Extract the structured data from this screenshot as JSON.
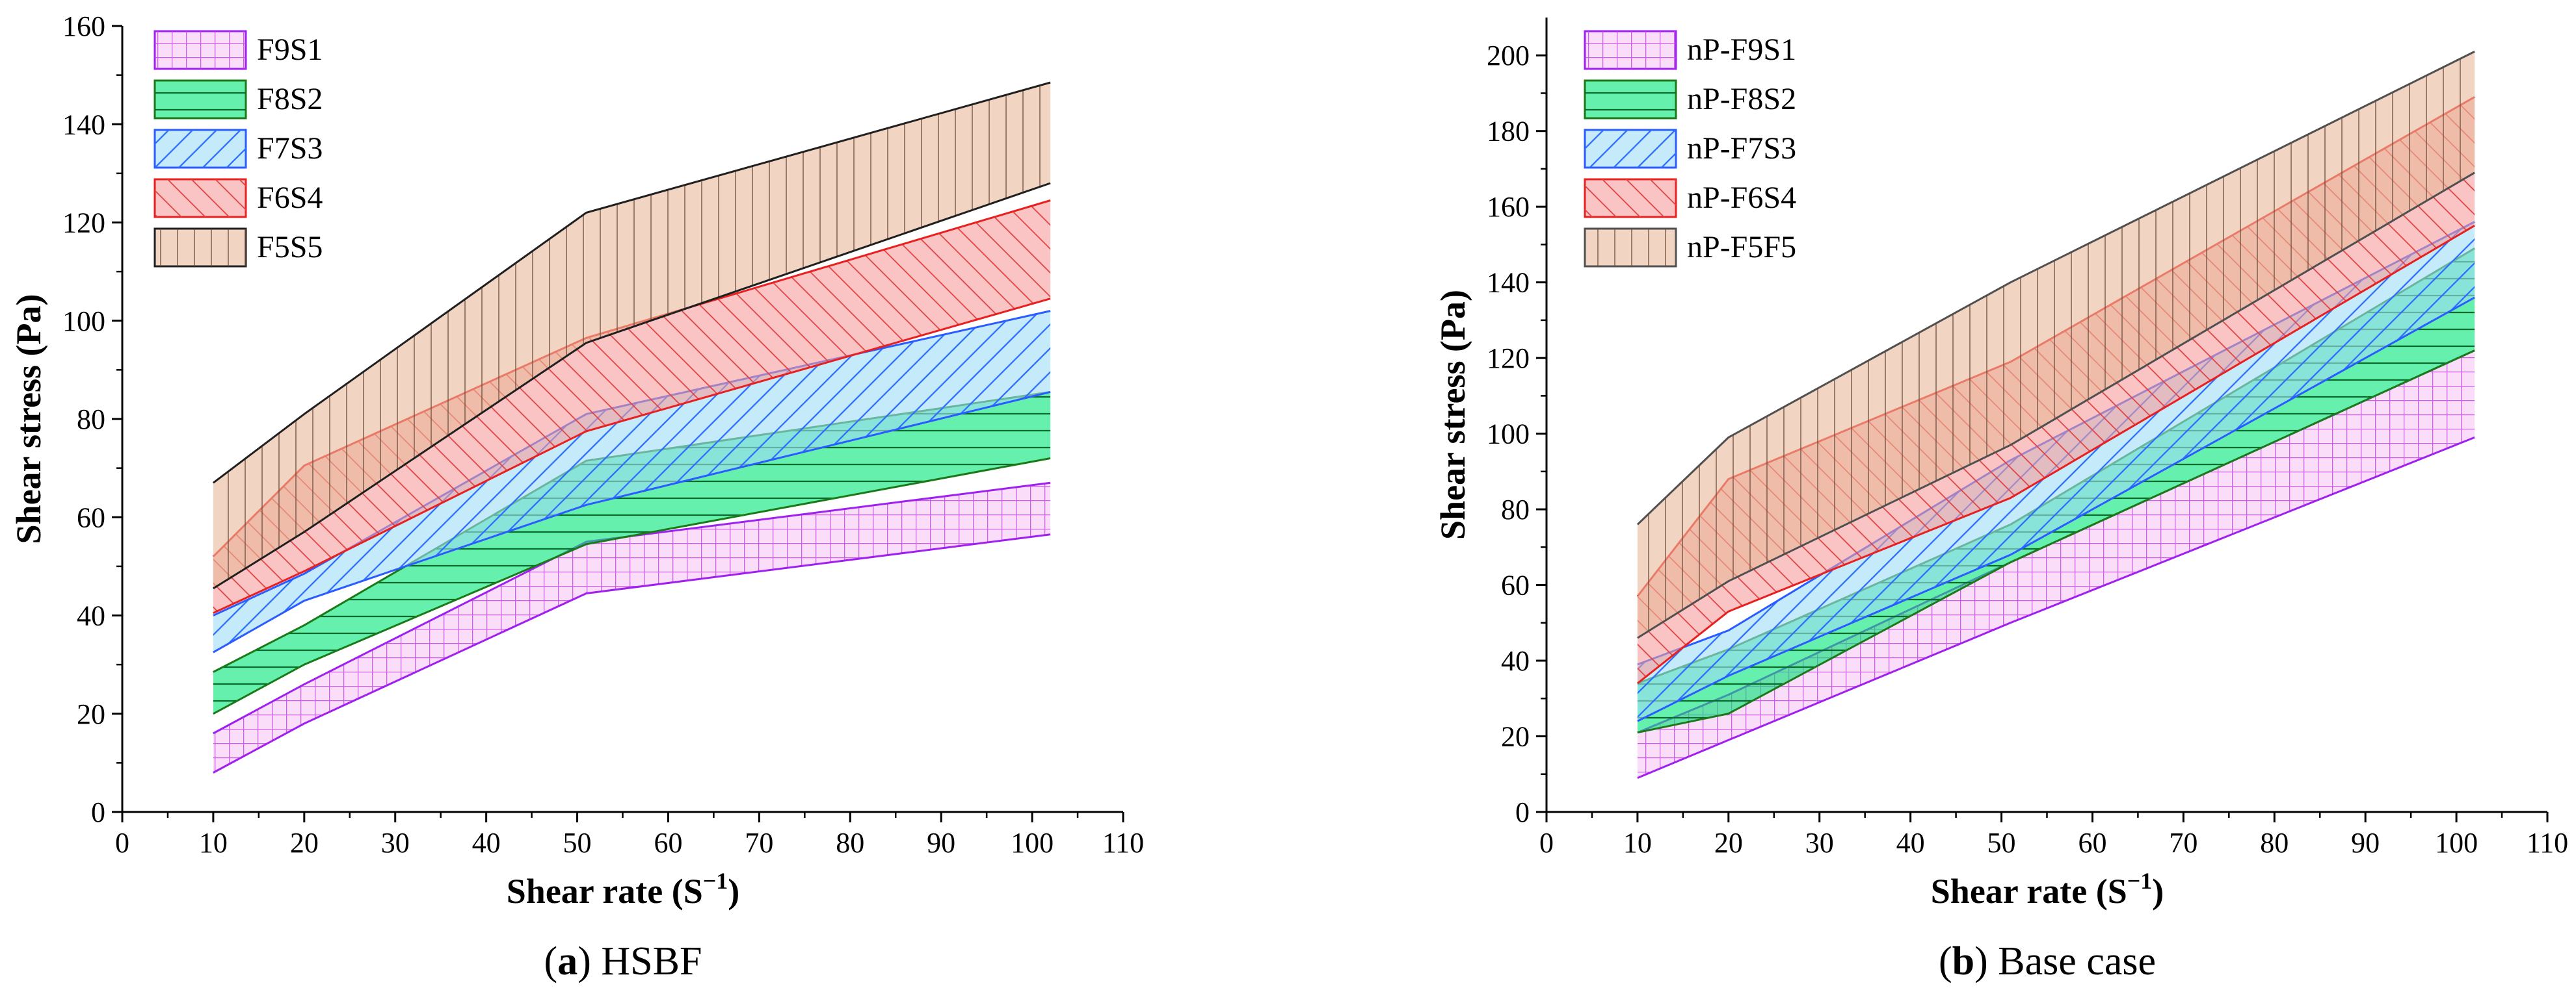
{
  "chart_data": [
    {
      "type": "area",
      "panel_letter": "a",
      "caption": "HSBF",
      "xlabel": "Shear rate (S",
      "xlabel_sup": "−1",
      "xlabel_close": ")",
      "ylabel": "Shear stress (Pa)",
      "xlim": [
        0,
        110
      ],
      "ylim": [
        0,
        160
      ],
      "xticks": [
        0,
        10,
        20,
        30,
        40,
        50,
        60,
        70,
        80,
        90,
        100,
        110
      ],
      "yticks": [
        0,
        20,
        40,
        60,
        80,
        100,
        120,
        140,
        160
      ],
      "legend_position": "top-left",
      "series": [
        {
          "name": "F9S1",
          "x": [
            10,
            20,
            51,
            102
          ],
          "lower": [
            8,
            18,
            44.5,
            56.5
          ],
          "upper": [
            16,
            26,
            55,
            67
          ],
          "fill": "#f7c6f3",
          "stroke": "#a020f0",
          "pattern": "grid"
        },
        {
          "name": "F8S2",
          "x": [
            10,
            20,
            51,
            102
          ],
          "lower": [
            20,
            30,
            54.5,
            72
          ],
          "upper": [
            28.5,
            38,
            71.5,
            85.5
          ],
          "fill": "#00e676",
          "stroke": "#1a7a1a",
          "pattern": "horizontal"
        },
        {
          "name": "F7S3",
          "x": [
            10,
            20,
            51,
            102
          ],
          "lower": [
            32.5,
            43,
            62.5,
            85.5
          ],
          "upper": [
            40,
            48.5,
            81,
            102
          ],
          "fill": "#9fdcf7",
          "stroke": "#2a5cff",
          "pattern": "backslash"
        },
        {
          "name": "F6S4",
          "x": [
            10,
            20,
            51,
            102
          ],
          "lower": [
            40.5,
            49,
            77.5,
            104.5
          ],
          "upper": [
            52,
            70.5,
            96.5,
            124.5
          ],
          "fill": "#f79c9c",
          "stroke": "#e82020",
          "pattern": "slash"
        },
        {
          "name": "F5S5",
          "x": [
            10,
            20,
            51,
            102
          ],
          "lower": [
            45.5,
            57,
            95.5,
            128
          ],
          "upper": [
            67,
            81,
            122,
            148.5
          ],
          "fill": "#e9b89a",
          "stroke": "#202020",
          "pattern": "vertical"
        }
      ]
    },
    {
      "type": "area",
      "panel_letter": "b",
      "caption": "Base case",
      "xlabel": "Shear rate (S",
      "xlabel_sup": "−1",
      "xlabel_close": ")",
      "ylabel": "Shear stress (Pa)",
      "xlim": [
        0,
        110
      ],
      "ylim": [
        0,
        210
      ],
      "xticks": [
        0,
        10,
        20,
        30,
        40,
        50,
        60,
        70,
        80,
        90,
        100,
        110
      ],
      "yticks": [
        0,
        20,
        40,
        60,
        80,
        100,
        120,
        140,
        160,
        180,
        200
      ],
      "legend_position": "top-left",
      "series": [
        {
          "name": "nP-F9S1",
          "x": [
            10,
            20,
            51,
            102
          ],
          "lower": [
            9,
            19,
            50,
            99
          ],
          "upper": [
            21,
            31,
            66,
            122
          ],
          "fill": "#f7c6f3",
          "stroke": "#a020f0",
          "pattern": "grid"
        },
        {
          "name": "nP-F8S2",
          "x": [
            10,
            20,
            51,
            102
          ],
          "lower": [
            21,
            26,
            66,
            122
          ],
          "upper": [
            34,
            43,
            76,
            149
          ],
          "fill": "#00e676",
          "stroke": "#1a7a1a",
          "pattern": "horizontal"
        },
        {
          "name": "nP-F7S3",
          "x": [
            10,
            20,
            51,
            102
          ],
          "lower": [
            24,
            36,
            68,
            136
          ],
          "upper": [
            39,
            48,
            93,
            156
          ],
          "fill": "#9fdcf7",
          "stroke": "#2a5cff",
          "pattern": "backslash"
        },
        {
          "name": "nP-F6S4",
          "x": [
            10,
            20,
            51,
            102
          ],
          "lower": [
            34,
            53,
            83,
            155
          ],
          "upper": [
            57,
            88,
            119,
            189
          ],
          "fill": "#f79c9c",
          "stroke": "#e82020",
          "pattern": "slash"
        },
        {
          "name": "nP-F5F5",
          "x": [
            10,
            20,
            51,
            102
          ],
          "lower": [
            46,
            61,
            97,
            169
          ],
          "upper": [
            76,
            99,
            140,
            201
          ],
          "fill": "#e9b89a",
          "stroke": "#505050",
          "pattern": "vertical"
        }
      ]
    }
  ]
}
